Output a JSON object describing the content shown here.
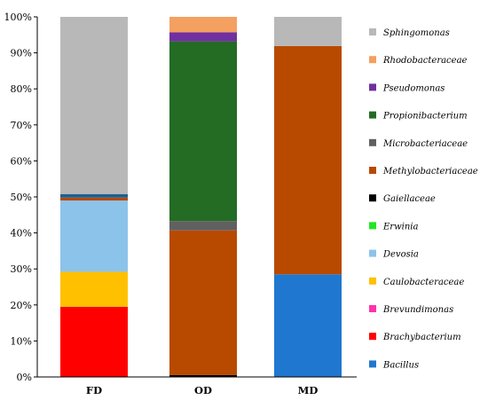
{
  "chart_data": {
    "type": "bar",
    "stacked": true,
    "categories": [
      "FD",
      "OD",
      "MD"
    ],
    "y_tick_labels": [
      "0%",
      "10%",
      "20%",
      "30%",
      "40%",
      "50%",
      "60%",
      "70%",
      "80%",
      "90%",
      "100%"
    ],
    "ylim": [
      0,
      100
    ],
    "grid": false,
    "legend_position": "right",
    "series": [
      {
        "name": "Bacillus",
        "color": "#1f77cf",
        "values": [
          0,
          0,
          28.5
        ]
      },
      {
        "name": "Brachybacterium",
        "color": "#ff0000",
        "values": [
          19.5,
          0,
          0
        ]
      },
      {
        "name": "Brevundimonas",
        "color": "#ff33aa",
        "values": [
          0,
          0,
          0
        ]
      },
      {
        "name": "Caulobacteraceae",
        "color": "#ffc000",
        "values": [
          9.7,
          0,
          0
        ]
      },
      {
        "name": "Devosia",
        "color": "#8cc3ea",
        "values": [
          19.8,
          0,
          0
        ]
      },
      {
        "name": "Erwinia",
        "color": "#22e622",
        "values": [
          0,
          0,
          0
        ]
      },
      {
        "name": "Gaiellaceae",
        "color": "#000000",
        "values": [
          0,
          0.5,
          0
        ]
      },
      {
        "name": "Methylobacteriaceae",
        "color": "#b84a00",
        "values": [
          0.8,
          40.2,
          63.4
        ]
      },
      {
        "name": "Microbacteriaceae",
        "color": "#606060",
        "values": [
          0,
          2.6,
          0
        ]
      },
      {
        "name": "Propionibacterium",
        "color": "#246b24",
        "values": [
          0,
          49.9,
          0
        ]
      },
      {
        "name": "Pseudomonas",
        "color": "#7030a0",
        "values": [
          0,
          2.5,
          0
        ]
      },
      {
        "name": "Rhodobacteraceae",
        "color": "#f4a060",
        "values": [
          0,
          4.3,
          0
        ]
      },
      {
        "name": "Sphingomonas",
        "color": "#b8b8b8",
        "values": [
          49.2,
          0,
          8.1
        ]
      }
    ],
    "extra_segments_note_free": true,
    "extra_segment_fd_blue": {
      "series_color": "#1f5f8f",
      "value": 1.0
    }
  }
}
